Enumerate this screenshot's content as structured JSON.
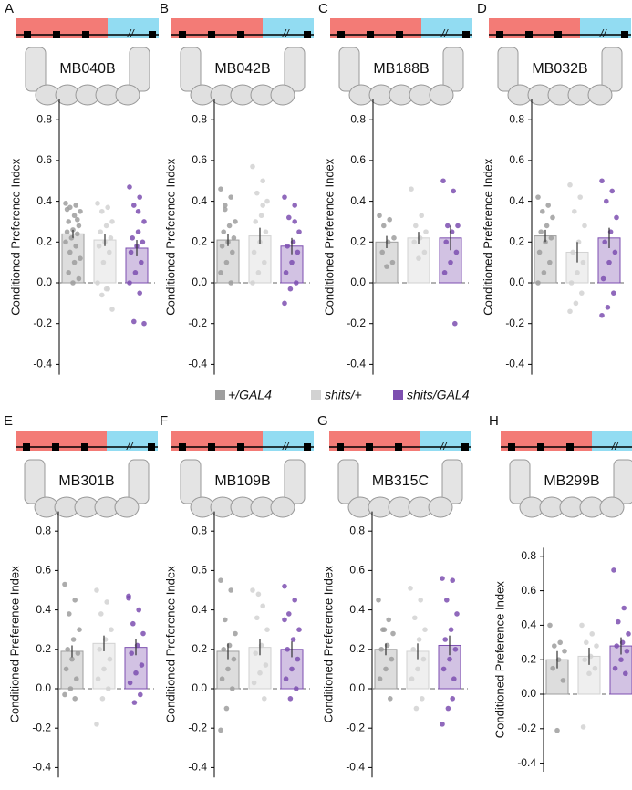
{
  "legend": [
    {
      "name": "+/GAL4",
      "color": "#9e9e9e"
    },
    {
      "name": "shits/+",
      "color": "#d2d2d2"
    },
    {
      "name": "shits/GAL4",
      "color": "#7d4fb0"
    }
  ],
  "chart_data": [
    {
      "type": "bar",
      "panel": "A",
      "title": "MB040B",
      "ylabel": "Conditioned Preference Index",
      "ylim": [
        -0.45,
        0.9
      ],
      "yticks": [
        -0.4,
        -0.2,
        {
          "value": 0,
          "label": "0.0"
        },
        0.2,
        0.4,
        0.6,
        0.8
      ],
      "groups": [
        {
          "mean": 0.24,
          "error": 0.02,
          "points": [
            0.39,
            0.38,
            0.37,
            0.35,
            0.33,
            0.3,
            0.28,
            0.26,
            0.25,
            0.24,
            0.22,
            0.2,
            0.18,
            0.15,
            0.12,
            0.1,
            0.05,
            0.02,
            0.0,
            0.36,
            0.31
          ]
        },
        {
          "mean": 0.21,
          "error": 0.03,
          "points": [
            0.39,
            0.37,
            0.35,
            0.3,
            0.28,
            0.25,
            0.22,
            0.2,
            0.18,
            0.15,
            0.1,
            0.0,
            -0.03,
            -0.06,
            -0.13,
            -0.03
          ]
        },
        {
          "mean": 0.17,
          "error": 0.04,
          "points": [
            0.47,
            0.42,
            0.38,
            0.3,
            0.25,
            0.22,
            0.2,
            0.18,
            0.15,
            0.1,
            0.05,
            0.0,
            -0.05,
            -0.19,
            -0.2,
            0.35
          ]
        }
      ]
    },
    {
      "type": "bar",
      "panel": "B",
      "title": "MB042B",
      "ylabel": "Conditioned Preference Index",
      "ylim": [
        -0.45,
        0.9
      ],
      "yticks": [
        -0.4,
        -0.2,
        {
          "value": 0,
          "label": "0.0"
        },
        0.2,
        0.4,
        0.6,
        0.8
      ],
      "groups": [
        {
          "mean": 0.21,
          "error": 0.03,
          "points": [
            0.46,
            0.42,
            0.36,
            0.3,
            0.28,
            0.25,
            0.22,
            0.2,
            0.18,
            0.15,
            0.1,
            0.05,
            0.0,
            0.38
          ]
        },
        {
          "mean": 0.23,
          "error": 0.04,
          "points": [
            0.57,
            0.5,
            0.44,
            0.4,
            0.33,
            0.3,
            0.25,
            0.2,
            0.15,
            0.1,
            0.05,
            0.0,
            0.38
          ]
        },
        {
          "mean": 0.18,
          "error": 0.04,
          "points": [
            0.42,
            0.38,
            0.32,
            0.25,
            0.2,
            0.18,
            0.15,
            0.1,
            0.05,
            0.0,
            -0.03,
            -0.1,
            0.3
          ]
        }
      ]
    },
    {
      "type": "bar",
      "panel": "C",
      "title": "MB188B",
      "ylabel": "Conditioned Preference Index",
      "ylim": [
        -0.45,
        0.9
      ],
      "yticks": [
        -0.4,
        -0.2,
        {
          "value": 0,
          "label": "0.0"
        },
        0.2,
        0.4,
        0.6,
        0.8
      ],
      "groups": [
        {
          "mean": 0.2,
          "error": 0.03,
          "points": [
            0.33,
            0.31,
            0.28,
            0.22,
            0.2,
            0.15,
            0.1,
            0.08
          ]
        },
        {
          "mean": 0.22,
          "error": 0.03,
          "points": [
            0.46,
            0.33,
            0.28,
            0.25,
            0.22,
            0.2,
            0.15,
            0.12
          ]
        },
        {
          "mean": 0.22,
          "error": 0.06,
          "points": [
            0.5,
            0.45,
            0.28,
            0.28,
            0.25,
            0.2,
            0.15,
            0.1,
            0.05,
            -0.2
          ]
        }
      ]
    },
    {
      "type": "bar",
      "panel": "D",
      "title": "MB032B",
      "ylabel": "Conditioned Preference Index",
      "ylim": [
        -0.45,
        0.9
      ],
      "yticks": [
        -0.4,
        -0.2,
        {
          "value": 0,
          "label": "0.0"
        },
        0.2,
        0.4,
        0.6,
        0.8
      ],
      "groups": [
        {
          "mean": 0.23,
          "error": 0.03,
          "points": [
            0.42,
            0.38,
            0.35,
            0.32,
            0.28,
            0.25,
            0.22,
            0.2,
            0.15,
            0.1,
            0.05,
            0.0
          ]
        },
        {
          "mean": 0.15,
          "error": 0.05,
          "points": [
            0.48,
            0.42,
            0.35,
            0.28,
            0.2,
            0.15,
            0.1,
            0.05,
            0.0,
            -0.05,
            -0.1,
            -0.14
          ]
        },
        {
          "mean": 0.22,
          "error": 0.05,
          "points": [
            0.5,
            0.45,
            0.4,
            0.32,
            0.25,
            0.2,
            0.15,
            0.1,
            0.02,
            -0.05,
            -0.12,
            -0.16
          ]
        }
      ]
    },
    {
      "type": "bar",
      "panel": "E",
      "title": "MB301B",
      "ylabel": "Conditioned Preference Index",
      "ylim": [
        -0.45,
        0.9
      ],
      "yticks": [
        -0.4,
        -0.2,
        {
          "value": 0,
          "label": "0.0"
        },
        0.2,
        0.4,
        0.6,
        0.8
      ],
      "groups": [
        {
          "mean": 0.19,
          "error": 0.03,
          "points": [
            0.53,
            0.45,
            0.38,
            0.3,
            0.25,
            0.2,
            0.18,
            0.15,
            0.1,
            0.05,
            0.0,
            -0.03,
            -0.05
          ]
        },
        {
          "mean": 0.23,
          "error": 0.04,
          "points": [
            0.5,
            0.44,
            0.38,
            0.3,
            0.25,
            0.2,
            0.15,
            0.1,
            0.05,
            0.0,
            -0.05,
            -0.18
          ]
        },
        {
          "mean": 0.21,
          "error": 0.04,
          "points": [
            0.47,
            0.4,
            0.33,
            0.28,
            0.22,
            0.18,
            0.12,
            0.08,
            0.03,
            -0.03,
            -0.07,
            0.46
          ]
        }
      ]
    },
    {
      "type": "bar",
      "panel": "F",
      "title": "MB109B",
      "ylabel": "Conditioned Preference Index",
      "ylim": [
        -0.45,
        0.9
      ],
      "yticks": [
        -0.4,
        -0.2,
        {
          "value": 0,
          "label": "0.0"
        },
        0.2,
        0.4,
        0.6,
        0.8
      ],
      "groups": [
        {
          "mean": 0.19,
          "error": 0.04,
          "points": [
            0.55,
            0.5,
            0.35,
            0.28,
            0.22,
            0.2,
            0.15,
            0.1,
            0.05,
            0.0,
            -0.1,
            -0.21
          ]
        },
        {
          "mean": 0.21,
          "error": 0.04,
          "points": [
            0.5,
            0.42,
            0.36,
            0.3,
            0.22,
            0.18,
            0.12,
            0.08,
            0.03,
            -0.05,
            0.48
          ]
        },
        {
          "mean": 0.2,
          "error": 0.04,
          "points": [
            0.52,
            0.45,
            0.38,
            0.3,
            0.25,
            0.2,
            0.15,
            0.1,
            0.05,
            0.0,
            -0.05,
            0.35
          ]
        }
      ]
    },
    {
      "type": "bar",
      "panel": "G",
      "title": "MB315C",
      "ylabel": "Conditioned Preference Index",
      "ylim": [
        -0.45,
        0.9
      ],
      "yticks": [
        -0.4,
        -0.2,
        {
          "value": 0,
          "label": "0.0"
        },
        0.2,
        0.4,
        0.6,
        0.8
      ],
      "groups": [
        {
          "mean": 0.2,
          "error": 0.03,
          "points": [
            0.45,
            0.35,
            0.3,
            0.28,
            0.22,
            0.2,
            0.15,
            0.1,
            0.05,
            -0.05,
            0.3
          ]
        },
        {
          "mean": 0.19,
          "error": 0.04,
          "points": [
            0.51,
            0.45,
            0.36,
            0.3,
            0.25,
            0.2,
            0.15,
            0.1,
            0.05,
            -0.05,
            -0.1
          ]
        },
        {
          "mean": 0.22,
          "error": 0.05,
          "points": [
            0.56,
            0.55,
            0.45,
            0.38,
            0.3,
            0.25,
            0.2,
            0.15,
            0.1,
            0.05,
            -0.1,
            -0.18,
            -0.05
          ]
        }
      ]
    },
    {
      "type": "bar",
      "panel": "H",
      "title": "MB299B",
      "ylabel": "Conditioned Preference Index",
      "ylim": [
        -0.45,
        0.85
      ],
      "yticks": [
        -0.4,
        -0.2,
        {
          "value": 0,
          "label": "0.0"
        },
        0.2,
        0.4,
        0.6,
        0.8
      ],
      "groups": [
        {
          "mean": 0.2,
          "error": 0.05,
          "points": [
            0.4,
            0.3,
            0.28,
            0.25,
            0.2,
            0.15,
            0.08,
            -0.21
          ]
        },
        {
          "mean": 0.22,
          "error": 0.05,
          "points": [
            0.4,
            0.35,
            0.3,
            0.28,
            0.22,
            0.2,
            0.15,
            0.12,
            -0.19
          ]
        },
        {
          "mean": 0.28,
          "error": 0.05,
          "points": [
            0.72,
            0.5,
            0.42,
            0.35,
            0.3,
            0.28,
            0.25,
            0.2,
            0.15,
            0.12
          ]
        }
      ]
    }
  ]
}
